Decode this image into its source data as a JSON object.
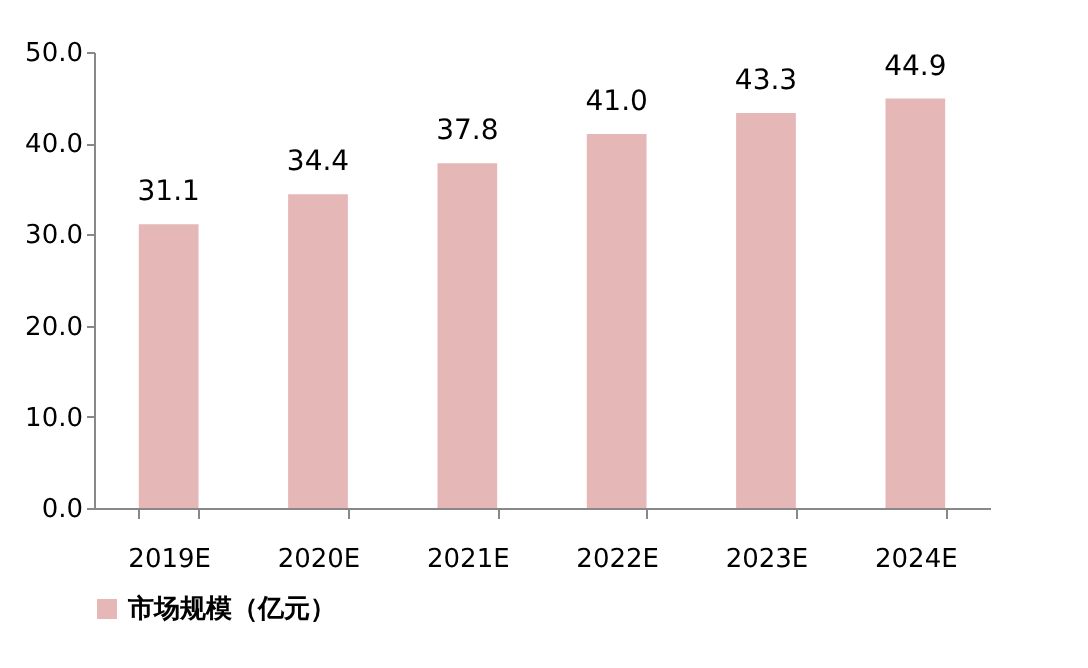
{
  "chart_data": {
    "type": "bar",
    "categories": [
      "2019E",
      "2020E",
      "2021E",
      "2022E",
      "2023E",
      "2024E"
    ],
    "series": [
      {
        "name": "市场规模（亿元）",
        "color": "#e6b7b7",
        "values": [
          31.1,
          34.4,
          37.8,
          41.0,
          43.3,
          44.9
        ]
      }
    ],
    "ylim": [
      0,
      50
    ],
    "yticks": [
      {
        "value": 0,
        "label": "0.0"
      },
      {
        "value": 10,
        "label": "10.0"
      },
      {
        "value": 20,
        "label": "20.0"
      },
      {
        "value": 30,
        "label": "30.0"
      },
      {
        "value": 40,
        "label": "40.0"
      },
      {
        "value": 50,
        "label": "50.0"
      }
    ],
    "value_labels": [
      "31.1",
      "34.4",
      "37.8",
      "41.0",
      "43.3",
      "44.9"
    ],
    "grid": false,
    "legend": "bottom"
  }
}
